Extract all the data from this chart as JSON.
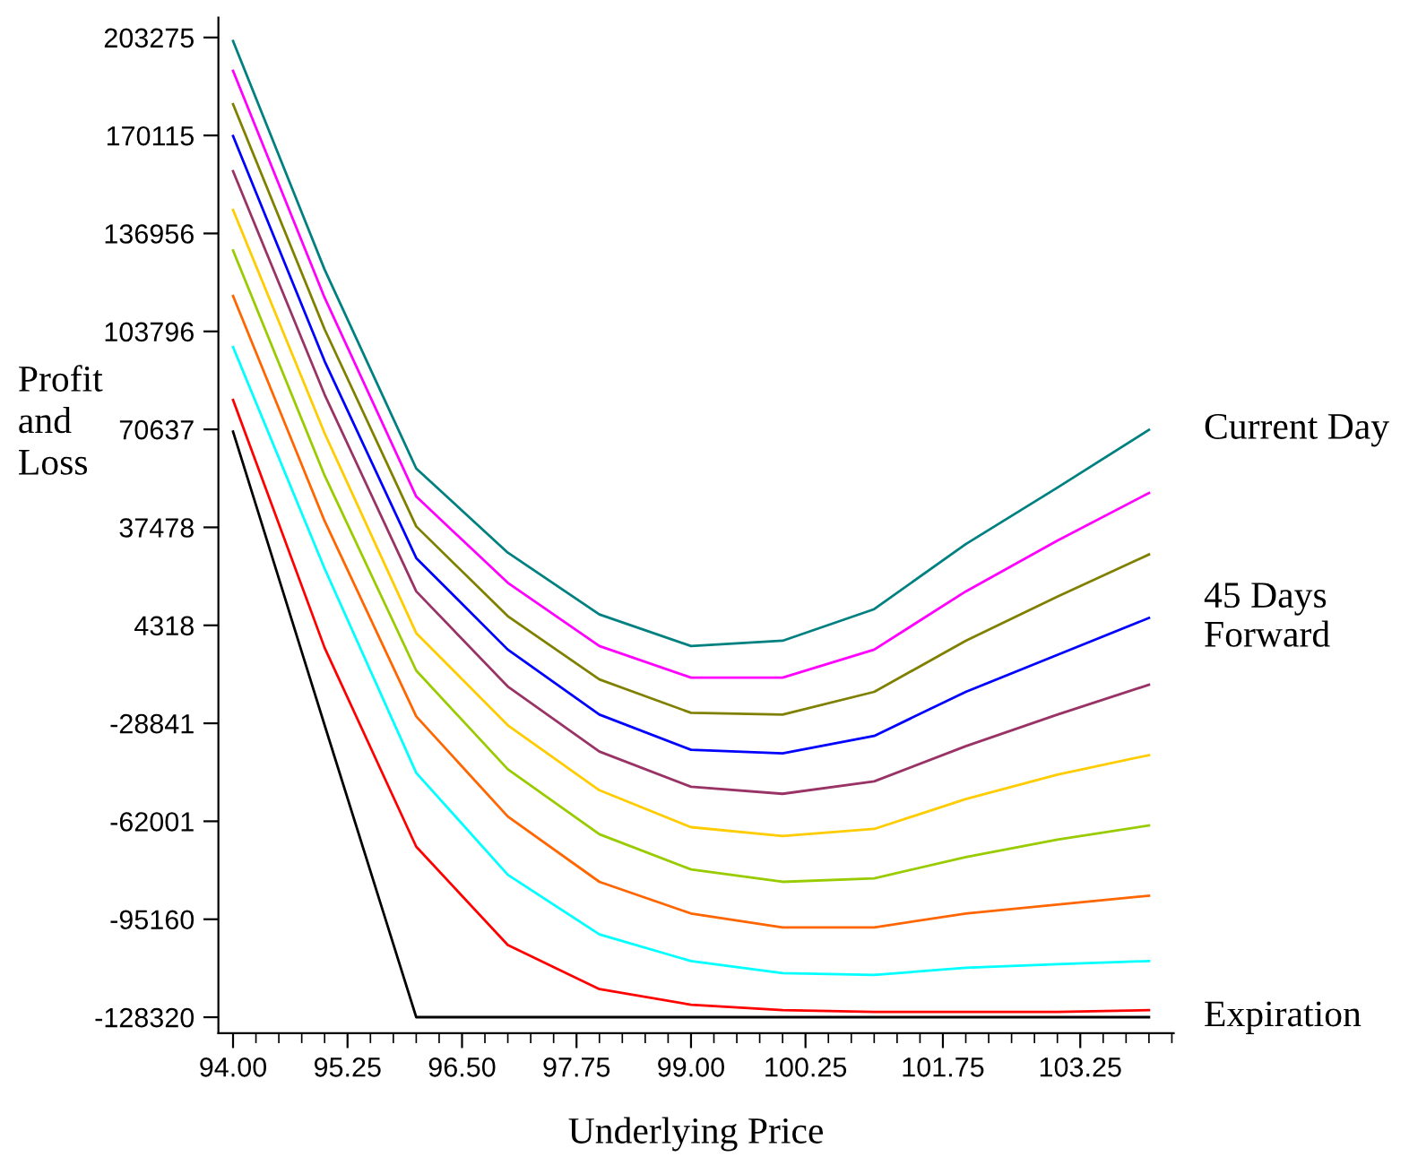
{
  "chart_data": {
    "type": "line",
    "xlabel": "Underlying Price",
    "ylabel": "Profit and Loss",
    "x": [
      94,
      95,
      96,
      97,
      98,
      99,
      100,
      101,
      102,
      103,
      104
    ],
    "series": [
      {
        "name": "Current Day",
        "color": "#008080",
        "values": [
          202100,
          124700,
          57400,
          28900,
          8000,
          -2700,
          -900,
          9800,
          31800,
          50900,
          70500
        ]
      },
      {
        "color": "#ff00ff",
        "values": [
          192000,
          115200,
          47900,
          18700,
          -2700,
          -13400,
          -13400,
          -3900,
          15800,
          33000,
          49100
        ]
      },
      {
        "color": "#808000",
        "values": [
          180700,
          104500,
          37800,
          7400,
          -14000,
          -25300,
          -25900,
          -18200,
          -900,
          14000,
          28300
        ]
      },
      {
        "name": "45 Days Forward",
        "color": "#0000ff",
        "values": [
          169900,
          93700,
          27100,
          -3900,
          -25900,
          -37800,
          -39000,
          -33100,
          -18200,
          -5700,
          6800
        ]
      },
      {
        "color": "#993366",
        "values": [
          158000,
          82400,
          15800,
          -16400,
          -38400,
          -50300,
          -52700,
          -48500,
          -36600,
          -25900,
          -15800
        ]
      },
      {
        "color": "#ffcc00",
        "values": [
          144900,
          69300,
          1700,
          -29500,
          -51500,
          -64000,
          -67000,
          -64600,
          -54500,
          -46200,
          -39600
        ]
      },
      {
        "color": "#99cc00",
        "values": [
          131200,
          55000,
          -11000,
          -44400,
          -66400,
          -78300,
          -82500,
          -81300,
          -74100,
          -68200,
          -63400
        ]
      },
      {
        "color": "#ff6600",
        "values": [
          115800,
          39600,
          -26500,
          -60400,
          -82500,
          -93200,
          -97900,
          -97900,
          -93200,
          -90200,
          -87200
        ]
      },
      {
        "color": "#00ffff",
        "values": [
          98500,
          23500,
          -45600,
          -80100,
          -100300,
          -109300,
          -113400,
          -114000,
          -111600,
          -110400,
          -109300
        ]
      },
      {
        "color": "#ff0000",
        "values": [
          80600,
          -3300,
          -70600,
          -103900,
          -118800,
          -124100,
          -125900,
          -126500,
          -126500,
          -126500,
          -125900
        ]
      },
      {
        "name": "Expiration",
        "color": "#000000",
        "values": [
          69900,
          -29500,
          -128300,
          -128300,
          -128300,
          -128300,
          -128300,
          -128300,
          -128300,
          -128300,
          -128300
        ]
      }
    ],
    "xlim": [
      93.84,
      104.27
    ],
    "xticks": [
      {
        "value": 94,
        "label": "94.00"
      },
      {
        "value": 95.25,
        "label": "95.25"
      },
      {
        "value": 96.5,
        "label": "96.50"
      },
      {
        "value": 97.75,
        "label": "97.75"
      },
      {
        "value": 99,
        "label": "99.00"
      },
      {
        "value": 100.25,
        "label": "100.25"
      },
      {
        "value": 101.75,
        "label": "101.75"
      },
      {
        "value": 103.25,
        "label": "103.25"
      }
    ],
    "ylim": [
      -133700,
      210000
    ],
    "yticks": [
      -128320,
      -95160,
      -62001,
      -28841,
      4318,
      37478,
      70637,
      103796,
      136956,
      170115,
      203275
    ],
    "grid": false,
    "legend": false,
    "marker": "none",
    "line_style": "solid"
  }
}
